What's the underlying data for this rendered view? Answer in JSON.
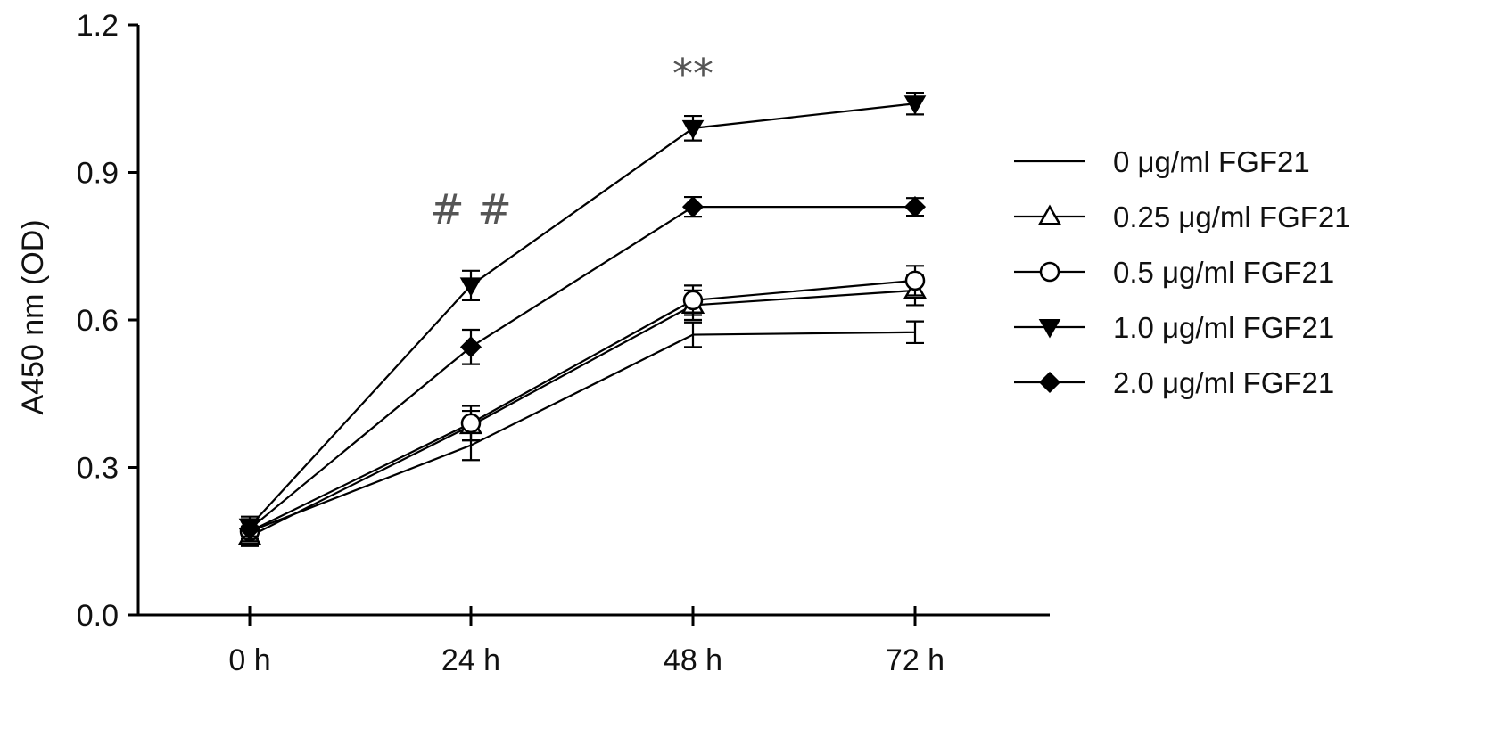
{
  "chart_data": {
    "type": "line",
    "title": "",
    "xlabel": "",
    "ylabel": "A450 nm (OD)",
    "categories": [
      "0 h",
      "24 h",
      "48 h",
      "72 h"
    ],
    "ylim": [
      0,
      1.2
    ],
    "yticks": [
      "0.0",
      "0.3",
      "0.6",
      "0.9",
      "1.2"
    ],
    "grid": false,
    "legend_position": "right",
    "series": [
      {
        "name": "0 μg/ml FGF21",
        "marker": "none",
        "values": [
          0.17,
          0.345,
          0.57,
          0.575
        ],
        "errors": [
          0.02,
          0.03,
          0.025,
          0.022
        ]
      },
      {
        "name": "0.25 μg/ml FGF21",
        "marker": "triangle-up-open",
        "values": [
          0.16,
          0.385,
          0.63,
          0.66
        ],
        "errors": [
          0.02,
          0.03,
          0.03,
          0.03
        ]
      },
      {
        "name": "0.5 μg/ml FGF21",
        "marker": "circle-open",
        "values": [
          0.17,
          0.39,
          0.64,
          0.68
        ],
        "errors": [
          0.02,
          0.035,
          0.03,
          0.03
        ]
      },
      {
        "name": "1.0 μg/ml FGF21",
        "marker": "triangle-down-filled",
        "values": [
          0.18,
          0.67,
          0.99,
          1.04
        ],
        "errors": [
          0.02,
          0.03,
          0.025,
          0.022
        ]
      },
      {
        "name": "2.0 μg/ml FGF21",
        "marker": "diamond-filled",
        "values": [
          0.175,
          0.545,
          0.83,
          0.83
        ],
        "errors": [
          0.02,
          0.035,
          0.02,
          0.018
        ]
      }
    ],
    "annotations": [
      {
        "text": "# #",
        "category": "24 h",
        "y": 0.825
      },
      {
        "text": "**",
        "category": "48 h",
        "y": 1.1
      }
    ]
  }
}
